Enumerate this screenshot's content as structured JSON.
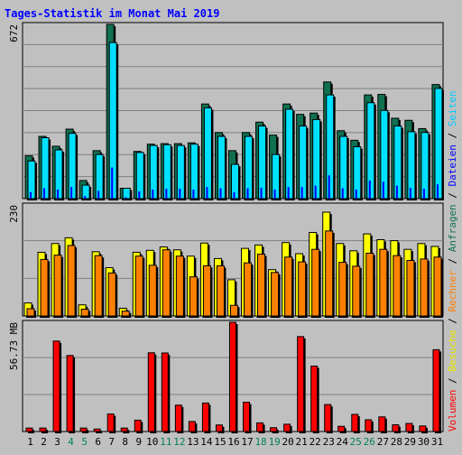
{
  "chart_data": [
    {
      "type": "bar",
      "title": "Tages-Statistik im Monat Mai 2019",
      "ymax_label": "672",
      "ylim": [
        0,
        672
      ],
      "legend": [
        {
          "label": "Anfragen",
          "color": "#107050"
        },
        {
          "label": "Dateien",
          "color": "#0000ff"
        },
        {
          "label": "Seiten",
          "color": "#00c8ff"
        }
      ],
      "categories": [
        "1",
        "2",
        "3",
        "4",
        "5",
        "6",
        "7",
        "8",
        "9",
        "10",
        "11",
        "12",
        "13",
        "14",
        "15",
        "16",
        "17",
        "18",
        "19",
        "20",
        "21",
        "22",
        "23",
        "24",
        "25",
        "26",
        "27",
        "28",
        "29",
        "30",
        "31"
      ],
      "weekend_days": [
        "4",
        "5",
        "11",
        "12",
        "18",
        "19",
        "25",
        "26"
      ],
      "series": [
        {
          "name": "Anfragen",
          "color": "#107050",
          "values": [
            165,
            240,
            202,
            268,
            70,
            185,
            672,
            40,
            182,
            210,
            212,
            212,
            215,
            365,
            255,
            185,
            255,
            295,
            245,
            365,
            325,
            330,
            450,
            262,
            225,
            400,
            402,
            310,
            302,
            270,
            440
          ]
        },
        {
          "name": "Seiten",
          "color": "#00e0ff",
          "values": [
            145,
            235,
            188,
            252,
            52,
            170,
            602,
            40,
            178,
            205,
            208,
            205,
            210,
            350,
            240,
            132,
            240,
            280,
            170,
            345,
            280,
            305,
            400,
            240,
            200,
            370,
            340,
            280,
            258,
            255,
            425
          ]
        },
        {
          "name": "Dateien",
          "color": "#0000ff",
          "values": [
            25,
            40,
            35,
            45,
            10,
            30,
            120,
            5,
            28,
            35,
            38,
            38,
            35,
            45,
            40,
            25,
            40,
            42,
            35,
            45,
            45,
            50,
            90,
            40,
            35,
            70,
            65,
            50,
            42,
            38,
            55
          ]
        }
      ]
    },
    {
      "type": "bar",
      "ymax_label": "230",
      "ylim": [
        0,
        230
      ],
      "legend": [
        {
          "label": "Besuche",
          "color": "#e8e800"
        },
        {
          "label": "Rechner",
          "color": "#ff8000"
        }
      ],
      "categories": [
        "1",
        "2",
        "3",
        "4",
        "5",
        "6",
        "7",
        "8",
        "9",
        "10",
        "11",
        "12",
        "13",
        "14",
        "15",
        "16",
        "17",
        "18",
        "19",
        "20",
        "21",
        "22",
        "23",
        "24",
        "25",
        "26",
        "27",
        "28",
        "29",
        "30",
        "31"
      ],
      "series": [
        {
          "name": "Besuche",
          "color": "#ffff00",
          "values": [
            27,
            132,
            150,
            162,
            23,
            133,
            100,
            16,
            132,
            136,
            143,
            137,
            124,
            151,
            119,
            75,
            140,
            147,
            96,
            152,
            129,
            173,
            215,
            150,
            135,
            170,
            158,
            156,
            138,
            150,
            144
          ]
        },
        {
          "name": "Rechner",
          "color": "#ff8000",
          "values": [
            15,
            117,
            126,
            146,
            14,
            125,
            89,
            10,
            124,
            105,
            137,
            124,
            81,
            104,
            104,
            22,
            110,
            128,
            90,
            122,
            112,
            138,
            176,
            111,
            103,
            130,
            138,
            125,
            115,
            118,
            122
          ]
        }
      ]
    },
    {
      "type": "bar",
      "ymax_label": "56.73 MB",
      "ylim": [
        0,
        56.73
      ],
      "legend": [
        {
          "label": "Volumen",
          "color": "#ff0000"
        }
      ],
      "categories": [
        "1",
        "2",
        "3",
        "4",
        "5",
        "6",
        "7",
        "8",
        "9",
        "10",
        "11",
        "12",
        "13",
        "14",
        "15",
        "16",
        "17",
        "18",
        "19",
        "20",
        "21",
        "22",
        "23",
        "24",
        "25",
        "26",
        "27",
        "28",
        "29",
        "30",
        "31"
      ],
      "series": [
        {
          "name": "Volumen",
          "color": "#ff0000",
          "values": [
            1.8,
            1.8,
            47,
            39.5,
            1.8,
            1.3,
            9.1,
            1.8,
            5.9,
            40.9,
            40.8,
            13.7,
            5.2,
            14.8,
            3.4,
            56.7,
            15.2,
            4.5,
            2.0,
            3.8,
            49.3,
            34.0,
            14.0,
            2.7,
            8.9,
            6.1,
            7.6,
            3.5,
            4.2,
            2.9,
            42.5
          ]
        }
      ]
    }
  ]
}
